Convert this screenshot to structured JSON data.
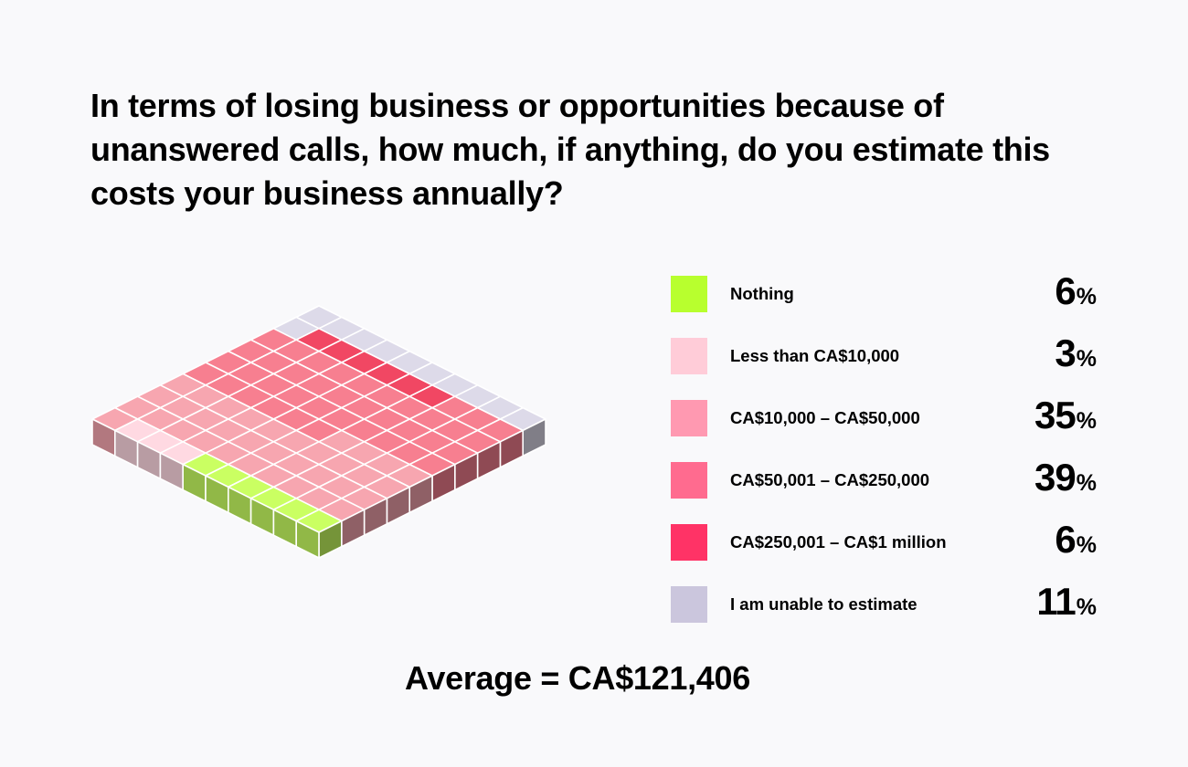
{
  "title": "In terms of losing business or opportunities because of unanswered calls, how much, if anything, do you estimate this costs your business annually?",
  "average_text": "Average = CA$121,406",
  "percent_sign": "%",
  "chart_data": {
    "type": "waffle",
    "total_cells": 100,
    "grid": [
      10,
      10
    ],
    "categories": [
      {
        "label": "Nothing",
        "value": 6,
        "color": "#b8ff2e"
      },
      {
        "label": "Less than CA$10,000",
        "value": 3,
        "color": "#ffccd8"
      },
      {
        "label": "CA$10,000 – CA$50,000",
        "value": 35,
        "color": "#ff99b1"
      },
      {
        "label": "CA$50,001 – CA$250,000",
        "value": 39,
        "color": "#ff6b8f"
      },
      {
        "label": "CA$250,001 – CA$1 million",
        "value": 6,
        "color": "#ff3366"
      },
      {
        "label": "I am unable to estimate",
        "value": 11,
        "color": "#cbc6dd"
      }
    ]
  }
}
